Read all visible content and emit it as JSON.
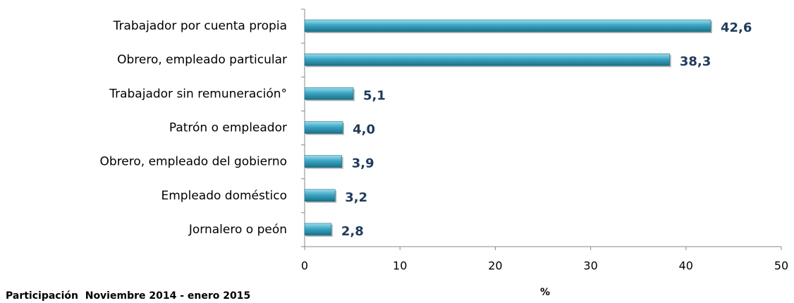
{
  "chart_data": {
    "type": "bar",
    "orientation": "horizontal",
    "categories": [
      "Trabajador por cuenta propia",
      "Obrero, empleado particular",
      "Trabajador sin remuneración°",
      "Patrón o empleador",
      "Obrero, empleado del gobierno",
      "Empleado doméstico",
      "Jornalero o peón"
    ],
    "values": [
      42.6,
      38.3,
      5.1,
      4.0,
      3.9,
      3.2,
      2.8
    ],
    "value_labels": [
      "42,6",
      "38,3",
      "5,1",
      "4,0",
      "3,9",
      "3,2",
      "2,8"
    ],
    "color": "#3aa6c4",
    "xlim": [
      0,
      50
    ],
    "xticks": [
      0,
      10,
      20,
      30,
      40,
      50
    ],
    "xlabel": "%",
    "note": "Participación  Noviembre 2014 - enero 2015"
  }
}
